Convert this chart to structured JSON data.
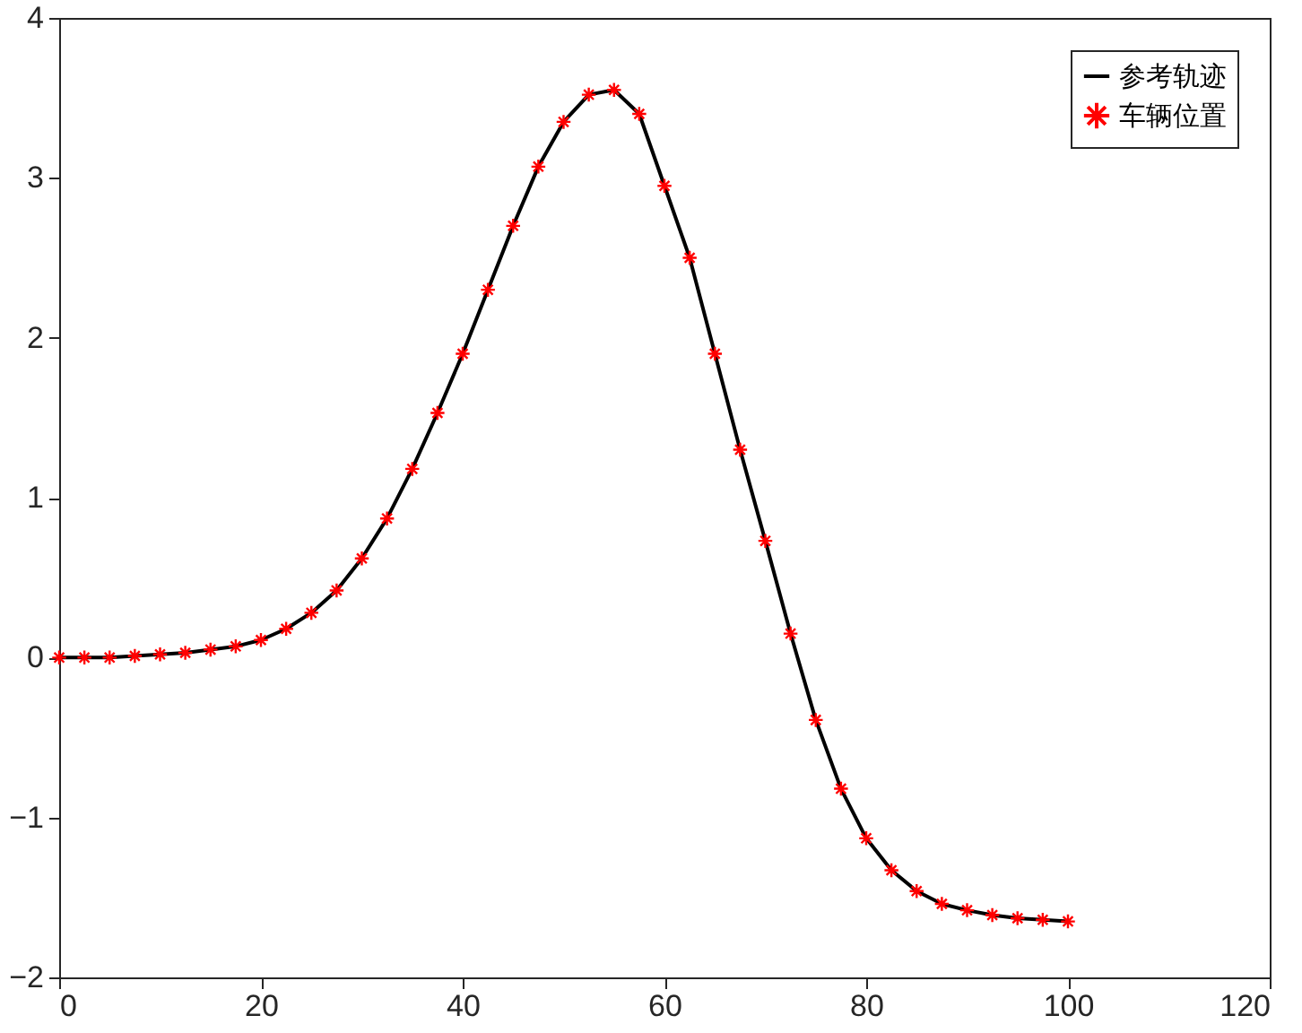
{
  "chart_data": {
    "type": "line",
    "x": [
      0,
      2.5,
      5,
      7.5,
      10,
      12.5,
      15,
      17.5,
      20,
      22.5,
      25,
      27.5,
      30,
      32.5,
      35,
      37.5,
      40,
      42.5,
      45,
      47.5,
      50,
      52.5,
      55,
      57.5,
      60,
      62.5,
      65,
      67.5,
      70,
      72.5,
      75,
      77.5,
      80,
      82.5,
      85,
      87.5,
      90,
      92.5,
      95,
      97.5,
      100
    ],
    "series": [
      {
        "name": "参考轨迹",
        "color": "#000000",
        "marker": "none",
        "line_style": "solid",
        "values": [
          0,
          0,
          0,
          0.01,
          0.02,
          0.03,
          0.05,
          0.07,
          0.11,
          0.18,
          0.28,
          0.42,
          0.62,
          0.87,
          1.18,
          1.53,
          1.9,
          2.3,
          2.7,
          3.07,
          3.35,
          3.52,
          3.55,
          3.4,
          2.95,
          2.5,
          1.9,
          1.3,
          0.73,
          0.15,
          -0.39,
          -0.82,
          -1.13,
          -1.33,
          -1.46,
          -1.54,
          -1.58,
          -1.61,
          -1.63,
          -1.64,
          -1.65
        ]
      },
      {
        "name": "车辆位置",
        "type": "scatter",
        "color": "#ff0000",
        "marker": "cross",
        "values": [
          0,
          0,
          0,
          0.01,
          0.02,
          0.03,
          0.05,
          0.07,
          0.11,
          0.18,
          0.28,
          0.42,
          0.62,
          0.87,
          1.18,
          1.53,
          1.9,
          2.3,
          2.7,
          3.07,
          3.35,
          3.52,
          3.55,
          3.4,
          2.95,
          2.5,
          1.9,
          1.3,
          0.73,
          0.15,
          -0.39,
          -0.82,
          -1.13,
          -1.33,
          -1.46,
          -1.54,
          -1.58,
          -1.61,
          -1.63,
          -1.64,
          -1.65
        ]
      }
    ],
    "xlim": [
      0,
      120
    ],
    "xticks": [
      0,
      20,
      40,
      60,
      80,
      100,
      120
    ],
    "ylim": [
      -2,
      4
    ],
    "yticks": [
      -2,
      -1,
      0,
      1,
      2,
      3,
      4
    ],
    "grid": false,
    "legend": "top right"
  }
}
